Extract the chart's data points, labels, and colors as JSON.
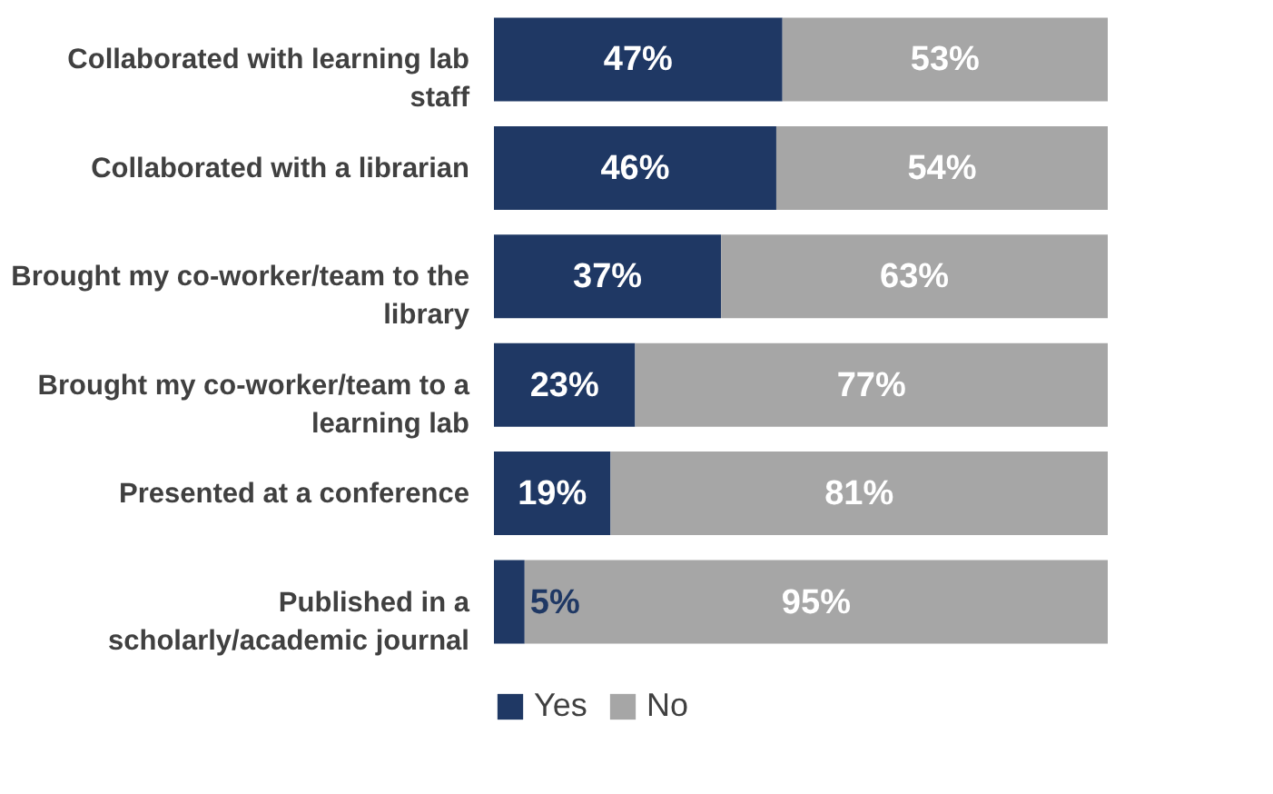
{
  "chart_data": {
    "type": "bar",
    "orientation": "horizontal",
    "stacked": true,
    "categories": [
      "Collaborated with learning lab staff",
      "Collaborated with a librarian",
      "Brought my co-worker/team to the library",
      "Brought my co-worker/team to a learning lab",
      "Presented at a conference",
      "Published in a scholarly/academic journal"
    ],
    "series": [
      {
        "name": "Yes",
        "color": "#1f3864",
        "values": [
          47,
          46,
          37,
          23,
          19,
          5
        ],
        "value_labels": [
          "47%",
          "46%",
          "37%",
          "23%",
          "19%",
          "5%"
        ]
      },
      {
        "name": "No",
        "color": "#a6a6a6",
        "values": [
          53,
          54,
          63,
          77,
          81,
          95
        ],
        "value_labels": [
          "53%",
          "54%",
          "63%",
          "77%",
          "81%",
          "95%"
        ]
      }
    ],
    "xlim": [
      0,
      100
    ],
    "tick_labels": "y",
    "legend": "bottom"
  }
}
